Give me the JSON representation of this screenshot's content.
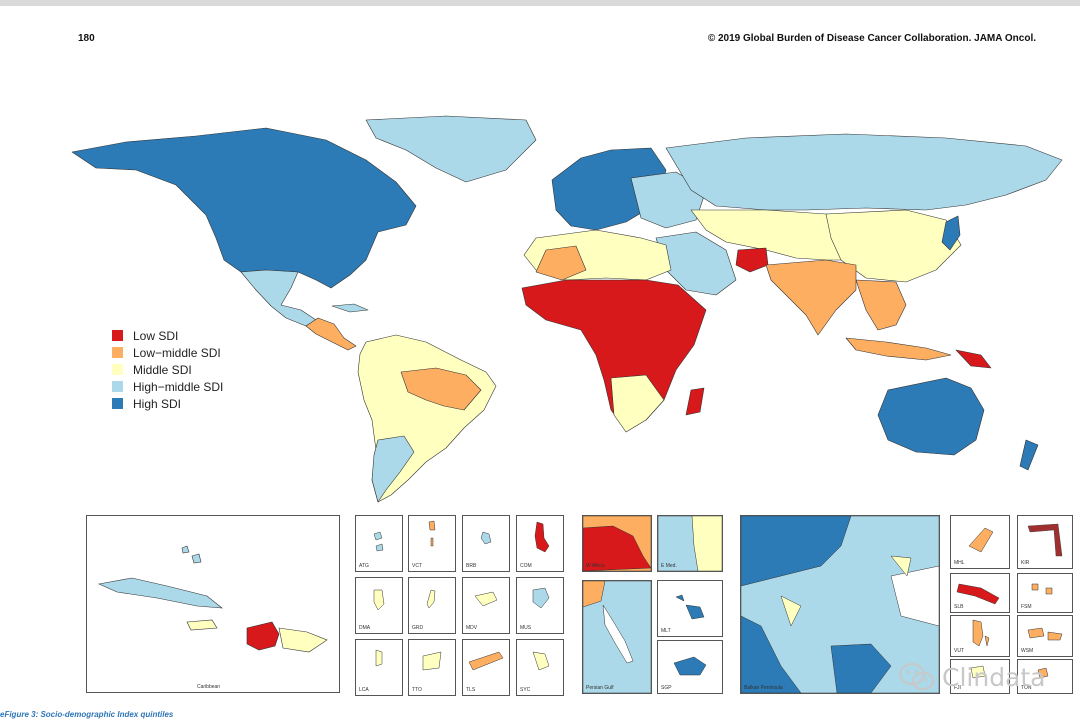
{
  "header": {
    "page_number": "180",
    "copyright": "© 2019 Global Burden of Disease Cancer Collaboration. JAMA Oncol."
  },
  "colors": {
    "low": "#d7191c",
    "low_middle": "#fdae61",
    "middle": "#ffffbf",
    "high_middle": "#abd9e9",
    "high": "#2c7bb6",
    "border": "#222222"
  },
  "legend": [
    {
      "label": "Low SDI",
      "color": "#d7191c"
    },
    {
      "label": "Low−middle SDI",
      "color": "#fdae61"
    },
    {
      "label": "Middle SDI",
      "color": "#ffffbf"
    },
    {
      "label": "High−middle SDI",
      "color": "#abd9e9"
    },
    {
      "label": "High SDI",
      "color": "#2c7bb6"
    }
  ],
  "insets": {
    "caribbean": "Caribbean",
    "atg": "ATG",
    "vct": "VCT",
    "brb": "BRB",
    "com": "COM",
    "dma": "DMA",
    "grd": "GRD",
    "mdv": "MDV",
    "mus": "MUS",
    "lca": "LCA",
    "tto": "TTO",
    "tls": "TLS",
    "syc": "SYC",
    "w_africa": "W Africa",
    "e_med": "E Med.",
    "persian_gulf": "Persian Gulf",
    "mlt": "MLT",
    "sgp": "SGP",
    "balkan": "Balkan Peninsula",
    "mhl": "MHL",
    "kir": "KIR",
    "slb": "SLB",
    "fsm": "FSM",
    "vut": "VUT",
    "wsm": "WSM",
    "fji": "FJI",
    "ton": "TON"
  },
  "caption": "eFigure 3: Socio-demographic Index quintiles",
  "watermark": "Clindata",
  "watermark_icon": "wechat-icon"
}
